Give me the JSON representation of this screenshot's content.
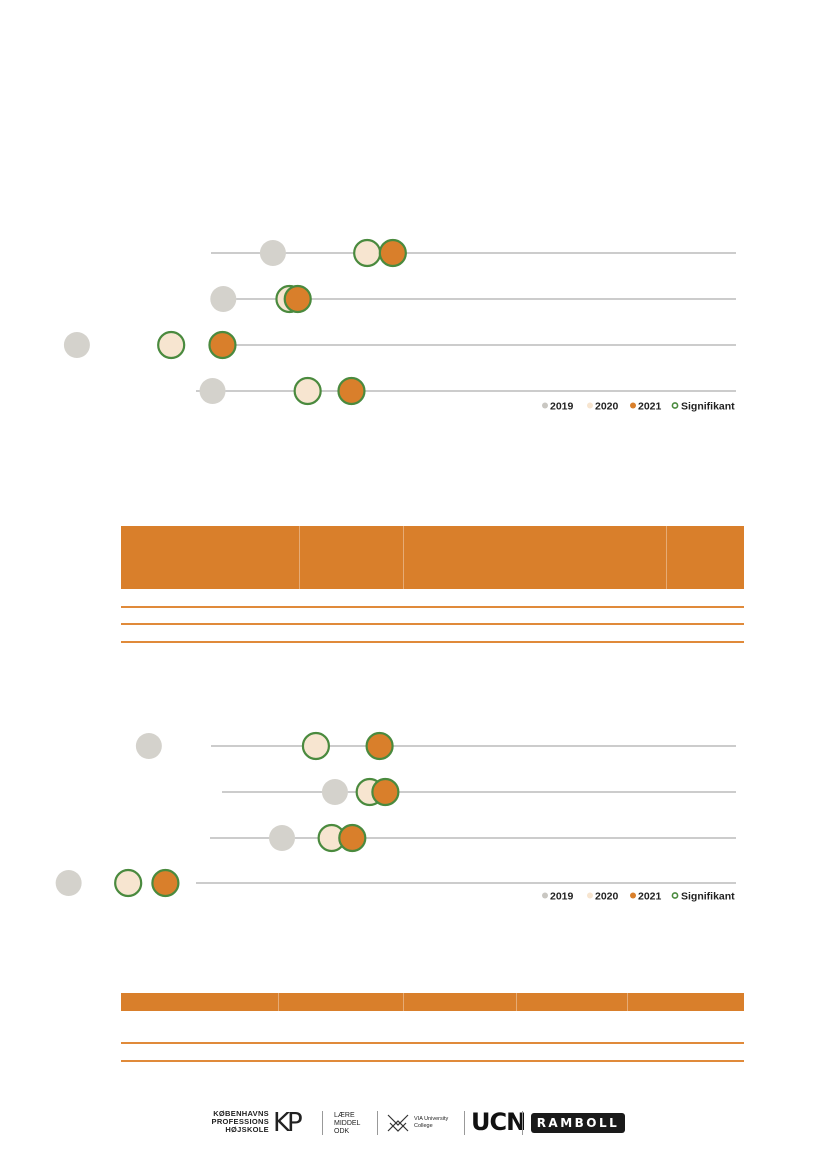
{
  "chart_data": [
    {
      "type": "scatter",
      "series": [
        {
          "name": "2019",
          "color": "#d4d2cc",
          "stroke": "none",
          "rows": [
            0.33,
            0.27,
            0.093,
            0.257
          ]
        },
        {
          "name": "2020",
          "color": "#f7e5d0",
          "stroke": "#4a8a3e",
          "rows": [
            0.444,
            0.35,
            0.207,
            0.372
          ]
        },
        {
          "name": "2021",
          "color": "#d97f2b",
          "stroke": "#4a8a3e",
          "rows": [
            0.475,
            0.36,
            0.269,
            0.425
          ]
        }
      ],
      "rows": 4,
      "legend": {
        "position": "bottom-right",
        "items": [
          {
            "label": "2019",
            "color": "#c9c7c2",
            "ring": false
          },
          {
            "label": "2020",
            "color": "#f7e5d0",
            "ring": false
          },
          {
            "label": "2021",
            "color": "#d97f2b",
            "ring": false
          },
          {
            "label": "Signifikant",
            "color": "#ffffff",
            "ring": true
          }
        ]
      }
    },
    {
      "type": "scatter",
      "series": [
        {
          "name": "2019",
          "color": "#d4d2cc",
          "stroke": "none",
          "rows": [
            0.18,
            0.405,
            0.341,
            0.083
          ]
        },
        {
          "name": "2020",
          "color": "#f7e5d0",
          "stroke": "#4a8a3e",
          "rows": [
            0.382,
            0.447,
            0.401,
            0.155
          ]
        },
        {
          "name": "2021",
          "color": "#d97f2b",
          "stroke": "#4a8a3e",
          "rows": [
            0.459,
            0.466,
            0.426,
            0.2
          ]
        }
      ],
      "rows": 4,
      "legend": {
        "position": "bottom-right",
        "items": [
          {
            "label": "2019",
            "color": "#c9c7c2",
            "ring": false
          },
          {
            "label": "2020",
            "color": "#f7e5d0",
            "ring": false
          },
          {
            "label": "2021",
            "color": "#d97f2b",
            "ring": false
          },
          {
            "label": "Signifikant",
            "color": "#ffffff",
            "ring": true
          }
        ]
      }
    }
  ],
  "tables": [
    {
      "header_color": "#d97f2b",
      "rows_shown": 3
    },
    {
      "header_color": "#d97f2b",
      "rows_shown": 2
    }
  ],
  "footer": {
    "logos": {
      "kp_line1": "KØBENHAVNS",
      "kp_line2": "PROFESSIONS",
      "kp_line3": "HØJSKOLE",
      "kp_mark": "KP",
      "lm_line1": "LÆRE",
      "lm_line2": "MIDDEL",
      "lm_line3": "ODK",
      "via_line1": "VIA University",
      "via_line2": "College",
      "ucn": "UCN",
      "ramboll": "RAMBOLL"
    }
  }
}
